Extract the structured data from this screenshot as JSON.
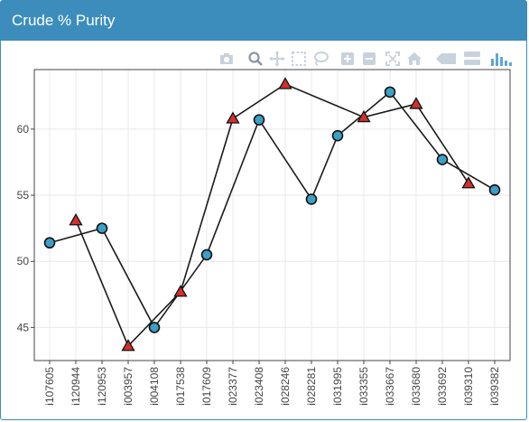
{
  "panel": {
    "title": "Crude % Purity"
  },
  "modebar": {
    "icons": [
      "camera-icon",
      "zoom-icon",
      "pan-icon",
      "box-select-icon",
      "lasso-icon",
      "zoom-in-icon",
      "zoom-out-icon",
      "autoscale-icon",
      "reset-axes-icon",
      "hover-closest-icon",
      "hover-compare-icon",
      "plotly-logo-icon"
    ],
    "color": "#c8d2dc",
    "logo_color": "#5fa8d3"
  },
  "chart_data": {
    "type": "line",
    "categories": [
      "i107605",
      "i120944",
      "i120953",
      "i003957",
      "i004108",
      "i017538",
      "i017609",
      "i023377",
      "i023408",
      "i028246",
      "i028281",
      "i031995",
      "i033355",
      "i033667",
      "i033680",
      "i033692",
      "i039310",
      "i039382"
    ],
    "ylim": [
      42.5,
      64.5
    ],
    "yticks": [
      45,
      50,
      55,
      60
    ],
    "grid": true,
    "series": [
      {
        "marker": "circle",
        "color": "#3d9fc5",
        "points": [
          {
            "x": "i107605",
            "y": 51.4
          },
          {
            "x": "i120953",
            "y": 52.5
          },
          {
            "x": "i004108",
            "y": 45.0
          },
          {
            "x": "i017609",
            "y": 50.5
          },
          {
            "x": "i023408",
            "y": 60.7
          },
          {
            "x": "i028281",
            "y": 54.7
          },
          {
            "x": "i031995",
            "y": 59.5
          },
          {
            "x": "i033667",
            "y": 62.8
          },
          {
            "x": "i033692",
            "y": 57.7
          },
          {
            "x": "i039382",
            "y": 55.4
          }
        ]
      },
      {
        "marker": "triangle",
        "color": "#d0312d",
        "points": [
          {
            "x": "i120944",
            "y": 53.1
          },
          {
            "x": "i003957",
            "y": 43.6
          },
          {
            "x": "i017538",
            "y": 47.7
          },
          {
            "x": "i023377",
            "y": 60.8
          },
          {
            "x": "i028246",
            "y": 63.4
          },
          {
            "x": "i033355",
            "y": 60.9
          },
          {
            "x": "i033680",
            "y": 61.9
          },
          {
            "x": "i039310",
            "y": 55.9
          }
        ]
      }
    ]
  }
}
